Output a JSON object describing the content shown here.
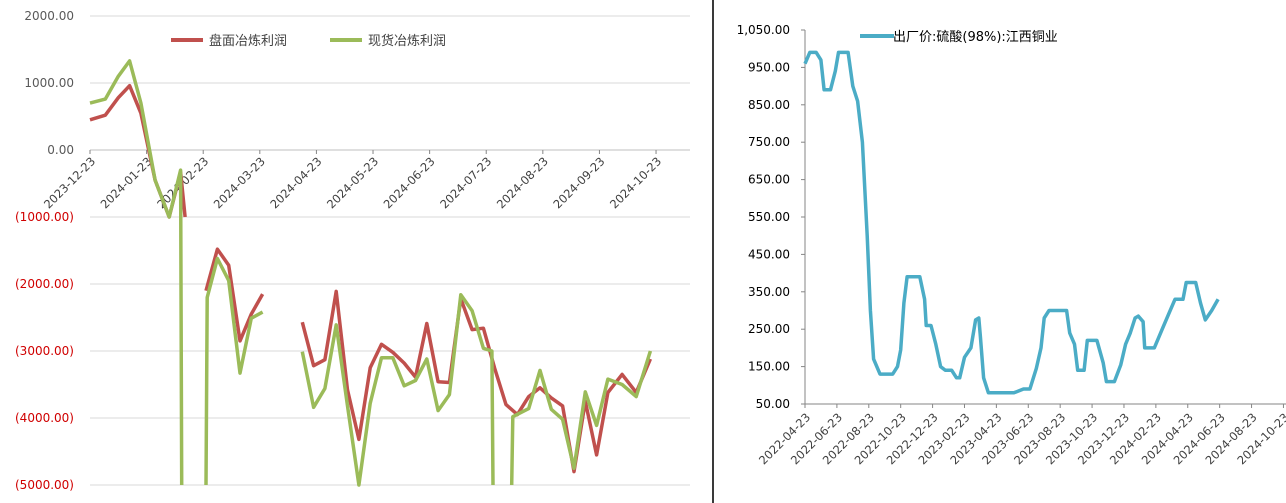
{
  "charts": [
    {
      "type": "line",
      "ylim": [
        -5000,
        2000
      ],
      "y_ticks": [
        {
          "value": 2000,
          "label": "2000.00",
          "color": "#595959"
        },
        {
          "value": 1000,
          "label": "1000.00",
          "color": "#595959"
        },
        {
          "value": 0,
          "label": "0.00",
          "color": "#595959"
        },
        {
          "value": -1000,
          "label": "(1000.00)",
          "color": "#d00000"
        },
        {
          "value": -2000,
          "label": "(2000.00)",
          "color": "#d00000"
        },
        {
          "value": -3000,
          "label": "(3000.00)",
          "color": "#d00000"
        },
        {
          "value": -4000,
          "label": "(4000.00)",
          "color": "#d00000"
        },
        {
          "value": -5000,
          "label": "(5000.00)",
          "color": "#d00000"
        }
      ],
      "x_ticks": [
        "2023-12-23",
        "2024-01-23",
        "2024-02-23",
        "2024-03-23",
        "2024-04-23",
        "2024-05-23",
        "2024-06-23",
        "2024-07-23",
        "2024-08-23",
        "2024-09-23",
        "2024-10-23"
      ],
      "x_range": [
        0,
        10.6
      ],
      "legend": {
        "position": "top"
      },
      "series": [
        {
          "name": "盘面冶炼利润",
          "color": "#c0504d",
          "points": [
            [
              0,
              450
            ],
            [
              0.27,
              520
            ],
            [
              0.5,
              780
            ],
            [
              0.7,
              960
            ],
            [
              0.9,
              550
            ],
            [
              1.15,
              -450
            ],
            [
              1.4,
              -1000
            ],
            [
              1.6,
              -330
            ],
            [
              1.68,
              -1000
            ],
            [
              null,
              null
            ],
            [
              2.05,
              -2100
            ],
            [
              2.25,
              -1480
            ],
            [
              2.45,
              -1720
            ],
            [
              2.65,
              -2850
            ],
            [
              2.85,
              -2450
            ],
            [
              3.05,
              -2150
            ],
            [
              null,
              null
            ],
            [
              3.75,
              -2570
            ],
            [
              3.95,
              -3220
            ],
            [
              4.15,
              -3130
            ],
            [
              4.35,
              -2110
            ],
            [
              4.55,
              -3580
            ],
            [
              4.75,
              -4320
            ],
            [
              4.95,
              -3250
            ],
            [
              5.15,
              -2900
            ],
            [
              5.35,
              -3020
            ],
            [
              5.55,
              -3180
            ],
            [
              5.75,
              -3390
            ],
            [
              5.95,
              -2590
            ],
            [
              6.15,
              -3460
            ],
            [
              6.35,
              -3470
            ],
            [
              6.55,
              -2220
            ],
            [
              6.75,
              -2680
            ],
            [
              6.95,
              -2660
            ],
            [
              7.15,
              -3260
            ],
            [
              7.35,
              -3800
            ],
            [
              7.55,
              -3950
            ],
            [
              7.75,
              -3680
            ],
            [
              7.95,
              -3550
            ],
            [
              8.15,
              -3700
            ],
            [
              8.35,
              -3820
            ],
            [
              8.55,
              -4800
            ],
            [
              8.75,
              -3750
            ],
            [
              8.95,
              -4550
            ],
            [
              9.15,
              -3620
            ],
            [
              9.4,
              -3350
            ],
            [
              9.65,
              -3620
            ],
            [
              9.9,
              -3120
            ]
          ]
        },
        {
          "name": "现货冶炼利润",
          "color": "#9bbb59",
          "points": [
            [
              0,
              700
            ],
            [
              0.27,
              760
            ],
            [
              0.5,
              1100
            ],
            [
              0.7,
              1330
            ],
            [
              0.9,
              700
            ],
            [
              1.15,
              -450
            ],
            [
              1.4,
              -1000
            ],
            [
              1.6,
              -300
            ],
            [
              1.62,
              -5000
            ],
            [
              null,
              null
            ],
            [
              2.05,
              -5000
            ],
            [
              2.07,
              -2200
            ],
            [
              2.25,
              -1620
            ],
            [
              2.45,
              -1950
            ],
            [
              2.65,
              -3330
            ],
            [
              2.85,
              -2510
            ],
            [
              3.05,
              -2420
            ],
            [
              null,
              null
            ],
            [
              3.75,
              -3010
            ],
            [
              3.95,
              -3840
            ],
            [
              4.15,
              -3560
            ],
            [
              4.35,
              -2610
            ],
            [
              4.55,
              -3820
            ],
            [
              4.75,
              -5000
            ],
            [
              4.95,
              -3780
            ],
            [
              5.15,
              -3100
            ],
            [
              5.35,
              -3100
            ],
            [
              5.55,
              -3520
            ],
            [
              5.75,
              -3440
            ],
            [
              5.95,
              -3120
            ],
            [
              6.15,
              -3890
            ],
            [
              6.35,
              -3650
            ],
            [
              6.55,
              -2160
            ],
            [
              6.75,
              -2400
            ],
            [
              6.95,
              -2960
            ],
            [
              7.1,
              -3000
            ],
            [
              7.12,
              -5000
            ],
            [
              null,
              null
            ],
            [
              7.45,
              -5000
            ],
            [
              7.47,
              -3980
            ],
            [
              7.75,
              -3860
            ],
            [
              7.95,
              -3290
            ],
            [
              8.15,
              -3870
            ],
            [
              8.35,
              -4020
            ],
            [
              8.55,
              -4750
            ],
            [
              8.75,
              -3610
            ],
            [
              8.95,
              -4110
            ],
            [
              9.15,
              -3420
            ],
            [
              9.4,
              -3500
            ],
            [
              9.65,
              -3680
            ],
            [
              9.9,
              -3000
            ]
          ]
        }
      ]
    },
    {
      "type": "line",
      "ylim": [
        50,
        1050
      ],
      "y_ticks": [
        {
          "value": 1050,
          "label": "1,050.00",
          "color": "#000000"
        },
        {
          "value": 950,
          "label": "950.00",
          "color": "#000000"
        },
        {
          "value": 850,
          "label": "850.00",
          "color": "#000000"
        },
        {
          "value": 750,
          "label": "750.00",
          "color": "#000000"
        },
        {
          "value": 650,
          "label": "650.00",
          "color": "#000000"
        },
        {
          "value": 550,
          "label": "550.00",
          "color": "#000000"
        },
        {
          "value": 450,
          "label": "450.00",
          "color": "#000000"
        },
        {
          "value": 350,
          "label": "350.00",
          "color": "#000000"
        },
        {
          "value": 250,
          "label": "250.00",
          "color": "#000000"
        },
        {
          "value": 150,
          "label": "150.00",
          "color": "#000000"
        },
        {
          "value": 50,
          "label": "50.00",
          "color": "#000000"
        }
      ],
      "x_ticks": [
        "2022-04-23",
        "2022-06-23",
        "2022-08-23",
        "2022-10-23",
        "2022-12-23",
        "2023-02-23",
        "2023-04-23",
        "2023-06-23",
        "2023-08-23",
        "2023-10-23",
        "2023-12-23",
        "2024-02-23",
        "2024-04-23",
        "2024-06-23",
        "2024-08-23",
        "2024-10-23"
      ],
      "x_range": [
        0,
        15.08
      ],
      "legend": {
        "position": "top"
      },
      "series": [
        {
          "name": "出厂价:硫酸(98%):江西铜业",
          "color": "#4bacc6",
          "points": [
            [
              0,
              960
            ],
            [
              0.15,
              990
            ],
            [
              0.35,
              990
            ],
            [
              0.5,
              970
            ],
            [
              0.6,
              890
            ],
            [
              0.8,
              890
            ],
            [
              0.95,
              940
            ],
            [
              1.05,
              990
            ],
            [
              1.35,
              990
            ],
            [
              1.5,
              900
            ],
            [
              1.65,
              860
            ],
            [
              1.8,
              750
            ],
            [
              1.95,
              500
            ],
            [
              2.05,
              300
            ],
            [
              2.15,
              170
            ],
            [
              2.35,
              130
            ],
            [
              2.75,
              130
            ],
            [
              2.9,
              150
            ],
            [
              3.0,
              195
            ],
            [
              3.1,
              320
            ],
            [
              3.2,
              390
            ],
            [
              3.6,
              390
            ],
            [
              3.75,
              330
            ],
            [
              3.8,
              260
            ],
            [
              3.95,
              260
            ],
            [
              4.1,
              210
            ],
            [
              4.25,
              150
            ],
            [
              4.4,
              140
            ],
            [
              4.6,
              140
            ],
            [
              4.75,
              120
            ],
            [
              4.85,
              120
            ],
            [
              5.0,
              175
            ],
            [
              5.2,
              200
            ],
            [
              5.35,
              275
            ],
            [
              5.45,
              280
            ],
            [
              5.5,
              230
            ],
            [
              5.6,
              120
            ],
            [
              5.75,
              80
            ],
            [
              6.55,
              80
            ],
            [
              6.85,
              90
            ],
            [
              7.05,
              90
            ],
            [
              7.25,
              145
            ],
            [
              7.4,
              200
            ],
            [
              7.5,
              280
            ],
            [
              7.65,
              300
            ],
            [
              8.2,
              300
            ],
            [
              8.3,
              240
            ],
            [
              8.45,
              210
            ],
            [
              8.55,
              140
            ],
            [
              8.75,
              140
            ],
            [
              8.85,
              220
            ],
            [
              9.15,
              220
            ],
            [
              9.35,
              160
            ],
            [
              9.45,
              110
            ],
            [
              9.7,
              110
            ],
            [
              9.9,
              155
            ],
            [
              10.05,
              210
            ],
            [
              10.2,
              240
            ],
            [
              10.35,
              280
            ],
            [
              10.45,
              285
            ],
            [
              10.6,
              270
            ],
            [
              10.65,
              200
            ],
            [
              10.95,
              200
            ],
            [
              11.2,
              250
            ],
            [
              11.4,
              290
            ],
            [
              11.6,
              330
            ],
            [
              11.85,
              330
            ],
            [
              11.95,
              375
            ],
            [
              12.25,
              375
            ],
            [
              12.4,
              320
            ],
            [
              12.55,
              275
            ],
            [
              12.75,
              300
            ],
            [
              12.95,
              330
            ]
          ]
        }
      ]
    }
  ]
}
